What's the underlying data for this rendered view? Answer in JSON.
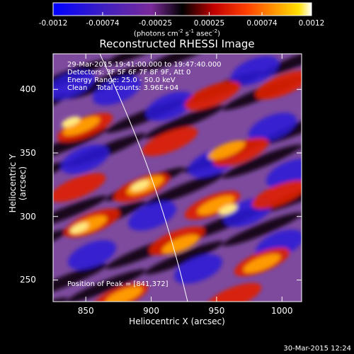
{
  "chart_data": {
    "type": "heatmap",
    "title": "Reconstructed RHESSI Image",
    "xlabel": "Heliocentric X (arcsec)",
    "ylabel": "Heliocentric Y (arcsec)",
    "xlim": [
      825,
      1015
    ],
    "ylim": [
      233,
      428
    ],
    "xticks": [
      "850",
      "900",
      "950",
      "1000"
    ],
    "yticks": [
      "250",
      "300",
      "350",
      "400"
    ],
    "colorbar": {
      "ticks": [
        "-0.0012",
        "-0.00074",
        "-0.00025",
        "0.00025",
        "0.00074",
        "0.0012"
      ],
      "range": [
        -0.0012,
        0.0012
      ],
      "units_main": "(photons cm",
      "units_sup1": "-2",
      "units_mid1": " s",
      "units_sup2": "-1",
      "units_mid2": " asec",
      "units_sup3": "-2",
      "units_end": ")"
    },
    "info_lines": [
      "29-Mar-2015 19:41:00.000 to 19:47:40.000",
      "Detectors: 3F 5F 6F 7F 8F 9F, Att 0",
      "Energy Range: 25.0 - 50.0 keV",
      "Clean    Total counts: 3.96E+04"
    ],
    "peak_label": "Position of Peak = [841,372]",
    "peak": [
      841,
      372
    ],
    "colormap": "blue-purple-black-red-yellow-white"
  },
  "timestamp": "30-Mar-2015 12:24"
}
